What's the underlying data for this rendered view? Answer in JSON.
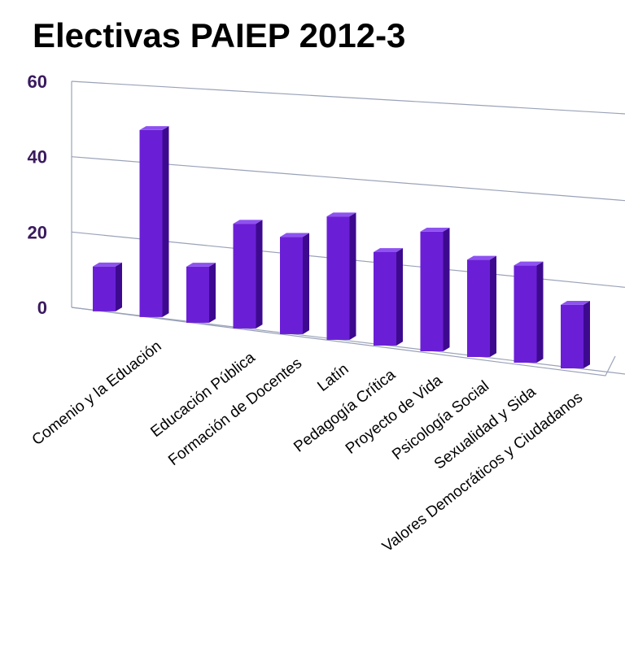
{
  "colors": {
    "bar_front": "#6a1fd6",
    "bar_side": "#3d0a8f",
    "bar_top": "#8e52f0",
    "title": "#000000",
    "tick": "#3a1a5e",
    "grid": "#9aa2b8",
    "label": "#000000"
  },
  "chart_data": {
    "type": "bar",
    "title": "Electivas  PAIEP 2012-3",
    "xlabel": "",
    "ylabel": "",
    "ylim": [
      0,
      60
    ],
    "yticks": [
      "0",
      "20",
      "40",
      "60"
    ],
    "grid": true,
    "legend": "none",
    "categories": [
      "",
      "Comenio y la Eduación",
      "",
      "Educación Pública",
      "Formación de Docentes",
      "Latín",
      "Pedagogía Crítica",
      "Proyecto de Vida",
      "Psicología Social",
      "Sexualidad y Sida",
      "Valores Democráticos y Ciudadanos"
    ],
    "values": [
      12,
      50,
      15,
      28,
      26,
      33,
      25,
      32,
      26,
      26,
      17
    ]
  }
}
